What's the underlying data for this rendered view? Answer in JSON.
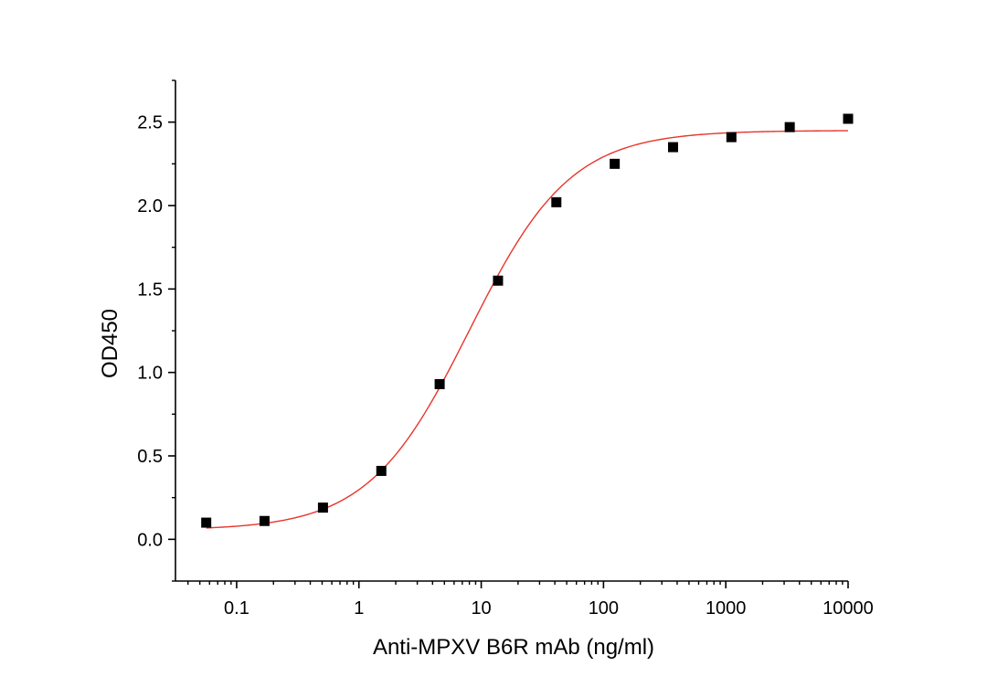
{
  "chart_data": {
    "type": "scatter",
    "title": "",
    "xlabel": "Anti-MPXV B6R mAb (ng/ml)",
    "ylabel": "OD450",
    "x_scale": "log",
    "xlim": [
      0.0316,
      10000
    ],
    "ylim": [
      -0.25,
      2.75
    ],
    "x_ticks": [
      0.1,
      1,
      10,
      100,
      1000,
      10000
    ],
    "x_tick_labels": [
      "0.1",
      "1",
      "10",
      "100",
      "1000",
      "10000"
    ],
    "y_ticks": [
      0.0,
      0.5,
      1.0,
      1.5,
      2.0,
      2.5
    ],
    "y_tick_labels": [
      "0.0",
      "0.5",
      "1.0",
      "1.5",
      "2.0",
      "2.5"
    ],
    "grid": false,
    "legend": "none",
    "series": [
      {
        "name": "measured",
        "marker": "square",
        "color": "#000000",
        "x": [
          0.0564,
          0.169,
          0.508,
          1.524,
          4.572,
          13.72,
          41.15,
          123.5,
          370.4,
          1111,
          3333,
          10000
        ],
        "y": [
          0.1,
          0.11,
          0.19,
          0.41,
          0.93,
          1.55,
          2.02,
          2.25,
          2.35,
          2.41,
          2.47,
          2.52
        ]
      }
    ],
    "fit_curve": {
      "name": "4PL fit",
      "color": "#e8352b",
      "bottom": 0.055,
      "top": 2.45,
      "ec50": 8.0,
      "hill": 1.05,
      "x_range": [
        0.0564,
        10000
      ]
    }
  }
}
